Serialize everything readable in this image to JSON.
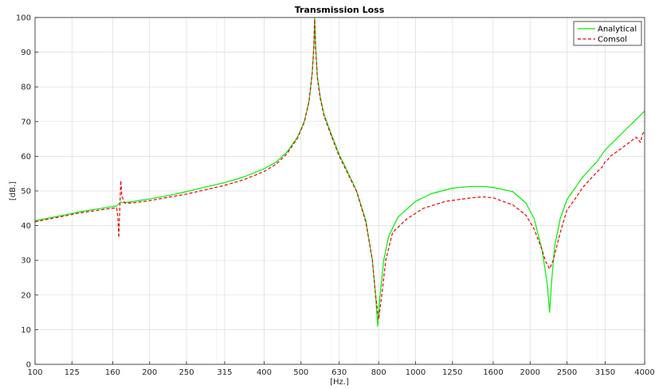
{
  "chart_data": {
    "type": "line",
    "title": "Transmission Loss",
    "xlabel": "[Hz.]",
    "ylabel": "[dB.]",
    "xscale": "log",
    "xlim": [
      100,
      4000
    ],
    "ylim": [
      0,
      100
    ],
    "x_ticks": [
      "100",
      "125",
      "160",
      "200",
      "250",
      "315",
      "400",
      "500",
      "630",
      "800",
      "1000",
      "1250",
      "1600",
      "2000",
      "2500",
      "3150",
      "4000"
    ],
    "y_ticks": [
      "0",
      "10",
      "20",
      "30",
      "40",
      "50",
      "60",
      "70",
      "80",
      "90",
      "100"
    ],
    "grid": true,
    "legend_position": "top-right",
    "series": [
      {
        "name": "Analytical",
        "color": "#00ee00",
        "style": "solid",
        "points": [
          [
            100,
            41.4
          ],
          [
            110,
            42.3
          ],
          [
            120,
            43.1
          ],
          [
            130,
            43.9
          ],
          [
            140,
            44.5
          ],
          [
            150,
            45.0
          ],
          [
            160,
            45.5
          ],
          [
            164,
            45.7
          ],
          [
            166,
            46.3
          ],
          [
            168,
            46.8
          ],
          [
            170,
            46.6
          ],
          [
            180,
            46.9
          ],
          [
            200,
            47.7
          ],
          [
            225,
            48.7
          ],
          [
            250,
            49.8
          ],
          [
            280,
            51.1
          ],
          [
            315,
            52.4
          ],
          [
            355,
            54.1
          ],
          [
            400,
            56.4
          ],
          [
            430,
            58.3
          ],
          [
            460,
            61.3
          ],
          [
            490,
            65.6
          ],
          [
            510,
            70.0
          ],
          [
            525,
            76.0
          ],
          [
            535,
            84.0
          ],
          [
            540,
            91.0
          ],
          [
            543,
            100
          ],
          [
            546,
            92.0
          ],
          [
            552,
            83.0
          ],
          [
            562,
            77.0
          ],
          [
            575,
            72.0
          ],
          [
            600,
            66.5
          ],
          [
            630,
            60.5
          ],
          [
            660,
            56.0
          ],
          [
            700,
            50.0
          ],
          [
            740,
            41.5
          ],
          [
            770,
            30.0
          ],
          [
            785,
            20.0
          ],
          [
            795,
            11.0
          ],
          [
            805,
            19.0
          ],
          [
            825,
            30.0
          ],
          [
            850,
            37.0
          ],
          [
            900,
            42.5
          ],
          [
            1000,
            47.0
          ],
          [
            1100,
            49.2
          ],
          [
            1250,
            50.8
          ],
          [
            1400,
            51.3
          ],
          [
            1500,
            51.3
          ],
          [
            1600,
            51.0
          ],
          [
            1800,
            49.8
          ],
          [
            1950,
            46.5
          ],
          [
            2050,
            42.0
          ],
          [
            2150,
            33.0
          ],
          [
            2220,
            23.0
          ],
          [
            2250,
            15.0
          ],
          [
            2275,
            23.0
          ],
          [
            2320,
            34.0
          ],
          [
            2400,
            42.0
          ],
          [
            2500,
            47.5
          ],
          [
            2750,
            54.0
          ],
          [
            3000,
            58.5
          ],
          [
            3150,
            61.8
          ],
          [
            3500,
            66.8
          ],
          [
            4000,
            73.0
          ]
        ]
      },
      {
        "name": "Comsol",
        "color": "#ee0000",
        "style": "dashed",
        "points": [
          [
            100,
            41.1
          ],
          [
            110,
            42.0
          ],
          [
            120,
            42.8
          ],
          [
            130,
            43.6
          ],
          [
            140,
            44.1
          ],
          [
            150,
            44.6
          ],
          [
            160,
            45.0
          ],
          [
            164,
            45.1
          ],
          [
            165,
            42.5
          ],
          [
            166,
            36.5
          ],
          [
            167,
            45.0
          ],
          [
            168,
            53.0
          ],
          [
            169,
            48.5
          ],
          [
            172,
            46.5
          ],
          [
            180,
            46.5
          ],
          [
            200,
            47.2
          ],
          [
            225,
            48.2
          ],
          [
            250,
            49.1
          ],
          [
            280,
            50.3
          ],
          [
            315,
            51.6
          ],
          [
            355,
            53.3
          ],
          [
            400,
            55.6
          ],
          [
            430,
            57.7
          ],
          [
            460,
            60.8
          ],
          [
            490,
            65.3
          ],
          [
            510,
            69.8
          ],
          [
            525,
            75.8
          ],
          [
            535,
            84.0
          ],
          [
            540,
            91.0
          ],
          [
            543,
            99.5
          ],
          [
            546,
            91.5
          ],
          [
            552,
            82.5
          ],
          [
            562,
            76.5
          ],
          [
            575,
            71.5
          ],
          [
            600,
            66.0
          ],
          [
            630,
            60.0
          ],
          [
            660,
            55.5
          ],
          [
            700,
            49.8
          ],
          [
            740,
            41.0
          ],
          [
            770,
            30.0
          ],
          [
            785,
            20.0
          ],
          [
            800,
            13.0
          ],
          [
            815,
            20.0
          ],
          [
            835,
            30.0
          ],
          [
            870,
            38.0
          ],
          [
            950,
            42.0
          ],
          [
            1050,
            45.0
          ],
          [
            1200,
            47.0
          ],
          [
            1400,
            48.0
          ],
          [
            1500,
            48.3
          ],
          [
            1600,
            48.0
          ],
          [
            1800,
            46.0
          ],
          [
            1950,
            43.0
          ],
          [
            2050,
            39.0
          ],
          [
            2150,
            33.0
          ],
          [
            2200,
            29.5
          ],
          [
            2250,
            27.5
          ],
          [
            2300,
            30.0
          ],
          [
            2400,
            38.0
          ],
          [
            2500,
            44.5
          ],
          [
            2600,
            47.0
          ],
          [
            2750,
            51.0
          ],
          [
            3000,
            55.5
          ],
          [
            3100,
            57.0
          ],
          [
            3150,
            58.5
          ],
          [
            3200,
            59.0
          ],
          [
            3250,
            60.0
          ],
          [
            3400,
            61.5
          ],
          [
            3600,
            63.5
          ],
          [
            3800,
            65.5
          ],
          [
            3900,
            64.0
          ],
          [
            3950,
            66.5
          ],
          [
            4000,
            67.0
          ]
        ]
      }
    ]
  }
}
